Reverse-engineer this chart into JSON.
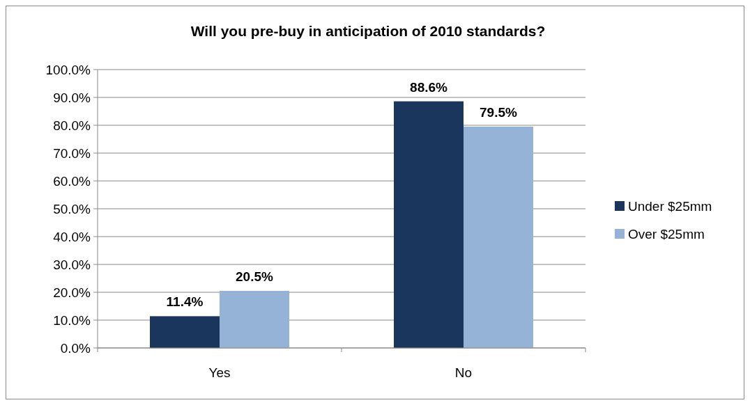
{
  "chart_data": {
    "type": "bar",
    "title": "Will you pre-buy in anticipation of 2010 standards?",
    "categories": [
      "Yes",
      "No"
    ],
    "series": [
      {
        "name": "Under $25mm",
        "color": "#1b365d",
        "values": [
          11.4,
          88.6
        ],
        "value_labels": [
          "11.4%",
          "88.6%"
        ]
      },
      {
        "name": "Over $25mm",
        "color": "#95b3d7",
        "values": [
          20.5,
          79.5
        ],
        "value_labels": [
          "20.5%",
          "79.5%"
        ]
      }
    ],
    "ylim": [
      0,
      100
    ],
    "yticks": [
      {
        "value": 0,
        "label": "0.0%"
      },
      {
        "value": 10,
        "label": "10.0%"
      },
      {
        "value": 20,
        "label": "20.0%"
      },
      {
        "value": 30,
        "label": "30.0%"
      },
      {
        "value": 40,
        "label": "40.0%"
      },
      {
        "value": 50,
        "label": "50.0%"
      },
      {
        "value": 60,
        "label": "60.0%"
      },
      {
        "value": 70,
        "label": "70.0%"
      },
      {
        "value": 80,
        "label": "80.0%"
      },
      {
        "value": 90,
        "label": "90.0%"
      },
      {
        "value": 100,
        "label": "100.0%"
      }
    ],
    "grid": "y",
    "legend": "right"
  }
}
